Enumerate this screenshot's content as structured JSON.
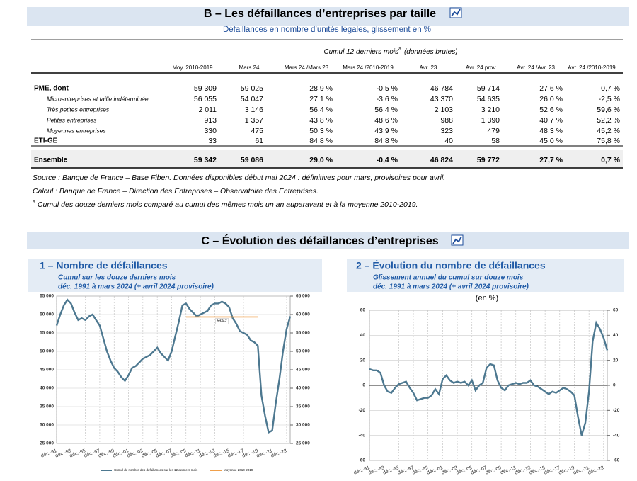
{
  "section_b": {
    "title": "B – Les défaillances d’entreprises par taille",
    "subtitle": "Défaillances en nombre d’unités légales, glissement en %",
    "table": {
      "group_header": "Cumul 12 derniers mois",
      "group_header_marker": "a",
      "group_header_suffix": "(données brutes)",
      "columns": [
        "Moy. 2010-2019",
        "Mars 24",
        "Mars 24 /Mars 23",
        "Mars 24 /2010-2019",
        "Avr. 23",
        "Avr. 24 prov.",
        "Avr. 24 /Avr. 23",
        "Avr. 24 /2010-2019"
      ],
      "rows": [
        [
          "PME, dont",
          "59 309",
          "59 025",
          "28,9 %",
          "-0,5 %",
          "46 784",
          "59 714",
          "27,6 %",
          "0,7 %"
        ],
        [
          "Microentreprises et taille indéterminée",
          "56 055",
          "54 047",
          "27,1 %",
          "-3,6 %",
          "43 370",
          "54 635",
          "26,0 %",
          "-2,5 %"
        ],
        [
          "Très petites entreprises",
          "2 011",
          "3 146",
          "56,4 %",
          "56,4 %",
          "2 103",
          "3 210",
          "52,6 %",
          "59,6 %"
        ],
        [
          "Petites entreprises",
          "913",
          "1 357",
          "43,8 %",
          "48,6 %",
          "988",
          "1 390",
          "40,7 %",
          "52,2 %"
        ],
        [
          "Moyennes entreprises",
          "330",
          "475",
          "50,3 %",
          "43,9 %",
          "323",
          "479",
          "48,3 %",
          "45,2 %"
        ],
        [
          "ETI-GE",
          "33",
          "61",
          "84,8 %",
          "84,8 %",
          "40",
          "58",
          "45,0 %",
          "75,8 %"
        ],
        [
          "Ensemble",
          "59 342",
          "59 086",
          "29,0 %",
          "-0,4 %",
          "46 824",
          "59 772",
          "27,7 %",
          "0,7 %"
        ]
      ]
    },
    "notes": [
      "Source : Banque de France – Base Fiben.  Données disponibles début mai 2024 : définitives pour mars, provisoires pour avril.",
      "Calcul : Banque de France – Direction des Entreprises – Observatoire des Entreprises."
    ],
    "footnote": {
      "marker": "a",
      "text": "Cumul des douze derniers mois comparé au cumul des mêmes mois un an auparavant et à la moyenne 2010-2019."
    }
  },
  "section_c": {
    "title": "C – Évolution des défaillances d’entreprises"
  },
  "chart_data": [
    {
      "type": "line",
      "title": "1 – Nombre de défaillances",
      "subtitle": "Cumul sur les douze derniers mois",
      "period": "déc. 1991 à mars 2024 (+ avril 2024 provisoire)",
      "categories": [
        "déc.-91",
        null,
        null,
        null,
        "déc.-93",
        null,
        null,
        null,
        "déc.-95",
        null,
        null,
        null,
        "déc.-97",
        null,
        null,
        null,
        "déc.-99",
        null,
        null,
        null,
        "déc.-01",
        null,
        null,
        null,
        "déc.-03",
        null,
        null,
        null,
        "déc.-05",
        null,
        null,
        null,
        "déc.-07",
        null,
        null,
        null,
        "déc.-09",
        null,
        null,
        null,
        "déc.-11",
        null,
        null,
        null,
        "déc.-13",
        null,
        null,
        null,
        "déc.-15",
        null,
        null,
        null,
        "déc.-17",
        null,
        null,
        null,
        "déc.-19",
        null,
        null,
        null,
        "déc.-21",
        null,
        null,
        null,
        "déc.-23",
        null
      ],
      "series": [
        {
          "name": "Cumul du nombre des défaillances sur les 12 derniers mois",
          "color": "#4d7890",
          "values": [
            57000,
            60000,
            62500,
            64000,
            63000,
            60500,
            58500,
            59000,
            58500,
            59500,
            60000,
            58500,
            57000,
            53500,
            50000,
            47500,
            45500,
            44500,
            43000,
            42000,
            43500,
            45500,
            46000,
            47000,
            48000,
            48500,
            49000,
            50000,
            51000,
            49500,
            48500,
            47500,
            50000,
            54000,
            58000,
            62500,
            63000,
            61500,
            60500,
            59500,
            60000,
            60500,
            61000,
            62500,
            63000,
            63000,
            63500,
            63000,
            62000,
            59000,
            57500,
            55500,
            55000,
            54500,
            53000,
            52500,
            51500,
            38000,
            32500,
            28000,
            28500,
            36000,
            42500,
            50000,
            56000,
            59500
          ]
        },
        {
          "name": "Moyenne 2010-2019",
          "color": "#f0a04b",
          "values": [
            null,
            null,
            null,
            null,
            null,
            null,
            null,
            null,
            null,
            null,
            null,
            null,
            null,
            null,
            null,
            null,
            null,
            null,
            null,
            null,
            null,
            null,
            null,
            null,
            null,
            null,
            null,
            null,
            null,
            null,
            null,
            null,
            null,
            null,
            null,
            null,
            59342,
            59342,
            59342,
            59342,
            59342,
            59342,
            59342,
            59342,
            59342,
            59342,
            59342,
            59342,
            59342,
            59342,
            59342,
            59342,
            59342,
            59342,
            59342,
            59342,
            59342,
            null,
            null,
            null,
            null,
            null,
            null,
            null,
            null,
            null
          ]
        }
      ],
      "ylim": [
        25000,
        65000
      ],
      "yticks": [
        {
          "value": 25000,
          "label": "25 000"
        },
        {
          "value": 30000,
          "label": "30 000"
        },
        {
          "value": 35000,
          "label": "35 000"
        },
        {
          "value": 40000,
          "label": "40 000"
        },
        {
          "value": 45000,
          "label": "45 000"
        },
        {
          "value": 50000,
          "label": "50 000"
        },
        {
          "value": 55000,
          "label": "55 000"
        },
        {
          "value": 60000,
          "label": "60 000"
        },
        {
          "value": 65000,
          "label": "65 000"
        }
      ],
      "y2lim": [
        25000,
        65000
      ],
      "y2ticks": [
        {
          "value": 25000,
          "label": "25 000"
        },
        {
          "value": 30000,
          "label": "30 000"
        },
        {
          "value": 35000,
          "label": "35 000"
        },
        {
          "value": 40000,
          "label": "40 000"
        },
        {
          "value": 45000,
          "label": "45 000"
        },
        {
          "value": 50000,
          "label": "50 000"
        },
        {
          "value": 55000,
          "label": "55 000"
        },
        {
          "value": 60000,
          "label": "60 000"
        },
        {
          "value": 65000,
          "label": "65 000"
        }
      ],
      "grid": true,
      "legend": "bottom"
    },
    {
      "type": "line",
      "title": "2 – Évolution du nombre de défaillances",
      "subtitle": "Glissement annuel du cumul sur douze mois",
      "period": "déc. 1991 à mars 2024 (+ avril 2024 provisoire)",
      "unit": "(en %)",
      "categories": [
        "déc.-91",
        null,
        null,
        null,
        "déc.-93",
        null,
        null,
        null,
        "déc.-95",
        null,
        null,
        null,
        "déc.-97",
        null,
        null,
        null,
        "déc.-99",
        null,
        null,
        null,
        "déc.-01",
        null,
        null,
        null,
        "déc.-03",
        null,
        null,
        null,
        "déc.-05",
        null,
        null,
        null,
        "déc.-07",
        null,
        null,
        null,
        "déc.-09",
        null,
        null,
        null,
        "déc.-11",
        null,
        null,
        null,
        "déc.-13",
        null,
        null,
        null,
        "déc.-15",
        null,
        null,
        null,
        "déc.-17",
        null,
        null,
        null,
        "déc.-19",
        null,
        null,
        null,
        "déc.-21",
        null,
        null,
        null,
        "déc.-23",
        null
      ],
      "series": [
        {
          "color": "#4d7890",
          "values": [
            13,
            12,
            12,
            10,
            0,
            -5,
            -6,
            -2,
            1,
            2,
            3,
            -2,
            -6,
            -12,
            -11,
            -10,
            -10,
            -8,
            -3,
            -7,
            5,
            8,
            4,
            2,
            3,
            2,
            3,
            0,
            4,
            -4,
            0,
            2,
            14,
            17,
            16,
            4,
            -2,
            -4,
            0,
            1,
            2,
            1,
            2,
            2,
            4,
            0,
            -1,
            -3,
            -5,
            -7,
            -5,
            -6,
            -4,
            -2,
            -3,
            -5,
            -8,
            -25,
            -40,
            -30,
            -5,
            35,
            50,
            45,
            38,
            28
          ]
        }
      ],
      "ylim": [
        -60,
        60
      ],
      "yticks": [
        -60,
        -40,
        -20,
        0,
        20,
        40,
        60
      ],
      "y2lim": [
        -60,
        60
      ],
      "y2ticks": [
        -60,
        -40,
        -20,
        0,
        20,
        40,
        60
      ],
      "grid": true
    }
  ]
}
